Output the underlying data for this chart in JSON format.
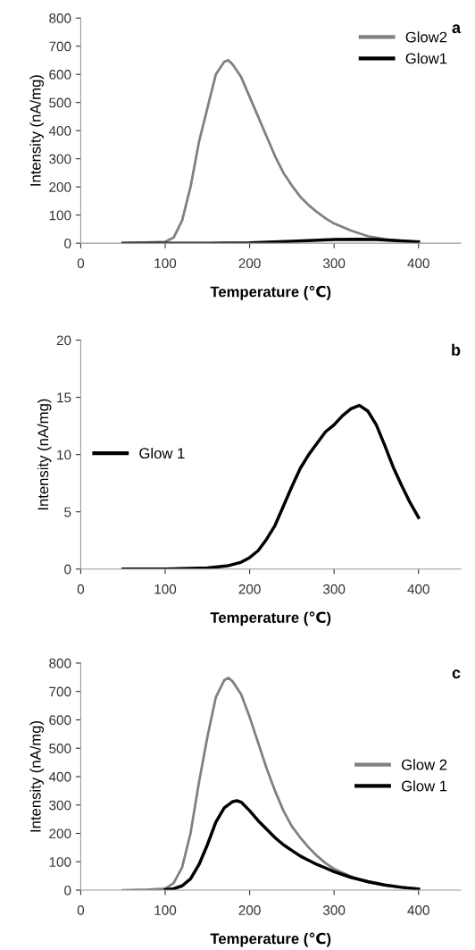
{
  "chart_data": [
    {
      "type": "line",
      "title": "a",
      "xlabel": "Temperature (℃)",
      "ylabel": "Intensity (nA/mg)",
      "xlim": [
        0,
        450
      ],
      "xticks": [
        0,
        100,
        200,
        300,
        400
      ],
      "ylim": [
        0,
        800
      ],
      "yticks": [
        0,
        100,
        200,
        300,
        400,
        500,
        600,
        700,
        800
      ],
      "grid": false,
      "legend": "upper right",
      "marker": "none",
      "line_style": "solid",
      "series": [
        {
          "name": "Glow2",
          "color": "#808080",
          "x": [
            50,
            100,
            110,
            120,
            130,
            140,
            150,
            160,
            170,
            175,
            180,
            190,
            200,
            210,
            220,
            230,
            240,
            250,
            260,
            270,
            280,
            290,
            300,
            320,
            340,
            360,
            380,
            400
          ],
          "values": [
            0,
            5,
            20,
            80,
            200,
            360,
            480,
            600,
            645,
            650,
            635,
            590,
            520,
            450,
            380,
            310,
            250,
            205,
            165,
            135,
            110,
            88,
            70,
            45,
            25,
            14,
            8,
            4
          ]
        },
        {
          "name": "Glow1",
          "color": "#000000",
          "x": [
            50,
            100,
            150,
            200,
            250,
            300,
            330,
            350,
            400
          ],
          "values": [
            0,
            0,
            0,
            1,
            7,
            13,
            14,
            13,
            5
          ]
        }
      ]
    },
    {
      "type": "line",
      "title": "b",
      "xlabel": "Temperature (℃)",
      "ylabel": "Intensity (nA/mg)",
      "xlim": [
        0,
        450
      ],
      "xticks": [
        0,
        100,
        200,
        300,
        400
      ],
      "ylim": [
        0,
        20
      ],
      "yticks": [
        0,
        5,
        10,
        15,
        20
      ],
      "grid": false,
      "legend": "center left",
      "marker": "none",
      "line_style": "solid",
      "series": [
        {
          "name": "Glow 1",
          "color": "#000000",
          "x": [
            50,
            100,
            150,
            175,
            190,
            200,
            210,
            220,
            230,
            240,
            250,
            260,
            270,
            280,
            290,
            300,
            310,
            320,
            330,
            340,
            350,
            360,
            370,
            380,
            390,
            400
          ],
          "values": [
            0,
            0,
            0.1,
            0.3,
            0.6,
            1.0,
            1.6,
            2.6,
            3.8,
            5.5,
            7.2,
            8.8,
            10.0,
            11.0,
            12.0,
            12.6,
            13.4,
            14.0,
            14.3,
            13.8,
            12.6,
            10.8,
            8.9,
            7.3,
            5.8,
            4.5
          ]
        }
      ]
    },
    {
      "type": "line",
      "title": "c",
      "xlabel": "Temperature (℃)",
      "ylabel": "Intensity (nA/mg)",
      "xlim": [
        0,
        450
      ],
      "xticks": [
        0,
        100,
        200,
        300,
        400
      ],
      "ylim": [
        0,
        800
      ],
      "yticks": [
        0,
        100,
        200,
        300,
        400,
        500,
        600,
        700,
        800
      ],
      "grid": false,
      "legend": "center right",
      "marker": "none",
      "line_style": "solid",
      "series": [
        {
          "name": "Glow 2",
          "color": "#808080",
          "x": [
            50,
            80,
            100,
            110,
            120,
            130,
            140,
            150,
            160,
            170,
            175,
            180,
            190,
            200,
            210,
            220,
            230,
            240,
            250,
            260,
            270,
            280,
            290,
            300,
            320,
            340,
            360,
            380,
            400
          ],
          "values": [
            0,
            2,
            5,
            25,
            80,
            200,
            380,
            540,
            680,
            740,
            748,
            735,
            690,
            610,
            520,
            430,
            350,
            280,
            225,
            185,
            150,
            120,
            95,
            75,
            48,
            28,
            17,
            10,
            5
          ]
        },
        {
          "name": "Glow 1",
          "color": "#000000",
          "x": [
            100,
            110,
            120,
            130,
            140,
            150,
            160,
            170,
            180,
            185,
            190,
            200,
            210,
            220,
            230,
            240,
            250,
            260,
            270,
            280,
            290,
            300,
            320,
            340,
            360,
            380,
            400
          ],
          "values": [
            2,
            5,
            15,
            40,
            90,
            160,
            240,
            290,
            312,
            315,
            310,
            280,
            245,
            215,
            185,
            160,
            140,
            120,
            105,
            90,
            78,
            65,
            45,
            30,
            18,
            10,
            4
          ]
        }
      ]
    }
  ]
}
